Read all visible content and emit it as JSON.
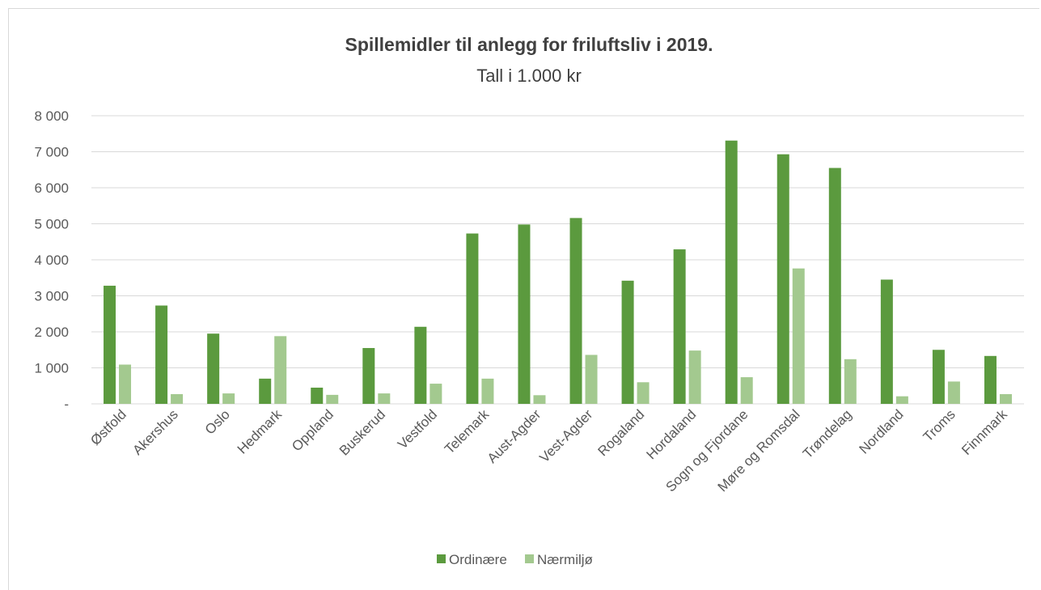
{
  "chart_data": {
    "type": "bar",
    "title": "Spillemidler til anlegg for friluftsliv i 2019.",
    "subtitle": "Tall i 1.000 kr",
    "xlabel": "",
    "ylabel": "",
    "ylim": [
      0,
      8000
    ],
    "yticks": [
      {
        "value": 0,
        "label": "-"
      },
      {
        "value": 1000,
        "label": "1 000"
      },
      {
        "value": 2000,
        "label": "2 000"
      },
      {
        "value": 3000,
        "label": "3 000"
      },
      {
        "value": 4000,
        "label": "4 000"
      },
      {
        "value": 5000,
        "label": "5 000"
      },
      {
        "value": 6000,
        "label": "6 000"
      },
      {
        "value": 7000,
        "label": "7 000"
      },
      {
        "value": 8000,
        "label": "8 000"
      }
    ],
    "grid": true,
    "legend_position": "bottom",
    "categories": [
      "Østfold",
      "Akershus",
      "Oslo",
      "Hedmark",
      "Oppland",
      "Buskerud",
      "Vestfold",
      "Telemark",
      "Aust-Agder",
      "Vest-Agder",
      "Rogaland",
      "Hordaland",
      "Sogn og Fjordane",
      "Møre og Romsdal",
      "Trøndelag",
      "Nordland",
      "Troms",
      "Finnmark"
    ],
    "series": [
      {
        "name": "Ordinære",
        "color": "#5b9a3e",
        "values": [
          3280,
          2730,
          1950,
          700,
          450,
          1550,
          2140,
          4730,
          4980,
          5160,
          3420,
          4290,
          7310,
          6930,
          6550,
          3450,
          1500,
          1330
        ]
      },
      {
        "name": "Nærmiljø",
        "color": "#a3c98f",
        "values": [
          1090,
          270,
          290,
          1880,
          250,
          290,
          560,
          700,
          240,
          1360,
          600,
          1480,
          740,
          3760,
          1240,
          210,
          620,
          270
        ]
      }
    ]
  }
}
